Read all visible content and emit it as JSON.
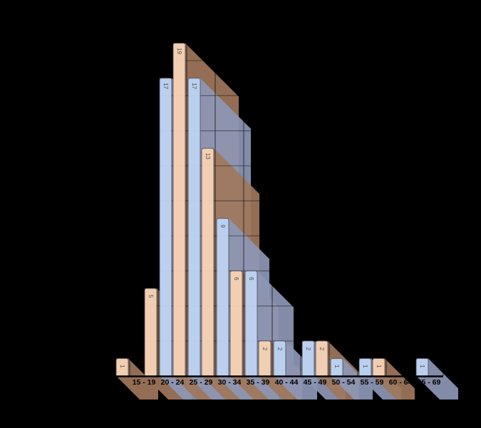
{
  "chart_data": {
    "type": "bar",
    "title": "",
    "subtitle": "",
    "legend": "none",
    "background_color": "#000000",
    "categories": [
      "",
      "15 - 19",
      "20 - 24",
      "25 - 29",
      "30 - 34",
      "35 - 39",
      "40 - 44",
      "45 - 49",
      "50 - 54",
      "55 - 59",
      "60 - 64",
      "65 - 69"
    ],
    "series": [
      {
        "name": "blue-series",
        "color": "#BED3F2",
        "shadow_color": "#8D97B5",
        "values": [
          0,
          0,
          17,
          17,
          9,
          6,
          2,
          2,
          1,
          1,
          0,
          1
        ]
      },
      {
        "name": "orange-series",
        "color": "#F8D4B7",
        "shadow_color": "#A0775C",
        "values": [
          1,
          5,
          19,
          13,
          6,
          2,
          0,
          2,
          0,
          1,
          0,
          0
        ]
      }
    ],
    "bar_value_labels_visible": true,
    "value_label_color": "#4b4b58",
    "x_axis_label_color": "#000000",
    "xlabel": "",
    "ylabel": "",
    "y_axis_visible": false,
    "grid": true,
    "gridline_values": [
      2,
      4,
      6,
      8,
      10,
      12,
      14,
      16,
      18
    ],
    "ylim": [
      0,
      19
    ],
    "effect": "3d-cast-shadow"
  }
}
